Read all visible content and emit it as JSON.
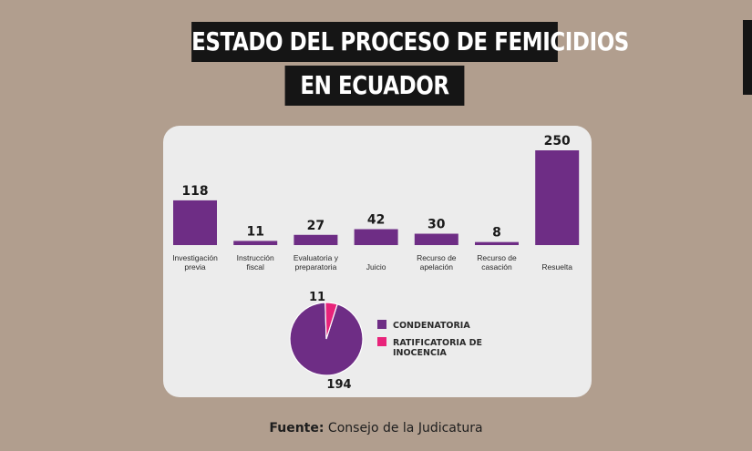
{
  "header": {
    "title_line_1": "ESTADO DEL PROCESO DE FEMICIDIOS",
    "title_line_2": "EN ECUADOR"
  },
  "colors": {
    "background": "#b19e8e",
    "title_bg": "#151515",
    "card_bg": "#ececec",
    "purple": "#6e2d85",
    "pink": "#e8237a"
  },
  "chart_data": [
    {
      "type": "bar",
      "categories": [
        [
          "Investigación",
          "previa"
        ],
        [
          "Instrucción",
          "fiscal"
        ],
        [
          "Evaluatoria y",
          "preparatoria"
        ],
        [
          "Juicio"
        ],
        [
          "Recurso de",
          "apelación"
        ],
        [
          "Recurso de",
          "casación"
        ],
        [
          "Resuelta"
        ]
      ],
      "values": [
        118,
        11,
        27,
        42,
        30,
        8,
        250
      ],
      "ylim": [
        0,
        250
      ],
      "grid": false,
      "color": "#6e2d85"
    },
    {
      "type": "pie",
      "labels": [
        "CONDENATORIA",
        "RATIFICATORIA DE INOCENCIA"
      ],
      "label_lines": [
        [
          "CONDENATORIA"
        ],
        [
          "RATIFICATORIA DE",
          "INOCENCIA"
        ]
      ],
      "values": [
        194,
        11
      ],
      "colors": [
        "#6e2d85",
        "#e8237a"
      ],
      "legend": "right"
    }
  ],
  "footer": {
    "source_label": "Fuente:",
    "source_text": " Consejo de la Judicatura"
  }
}
